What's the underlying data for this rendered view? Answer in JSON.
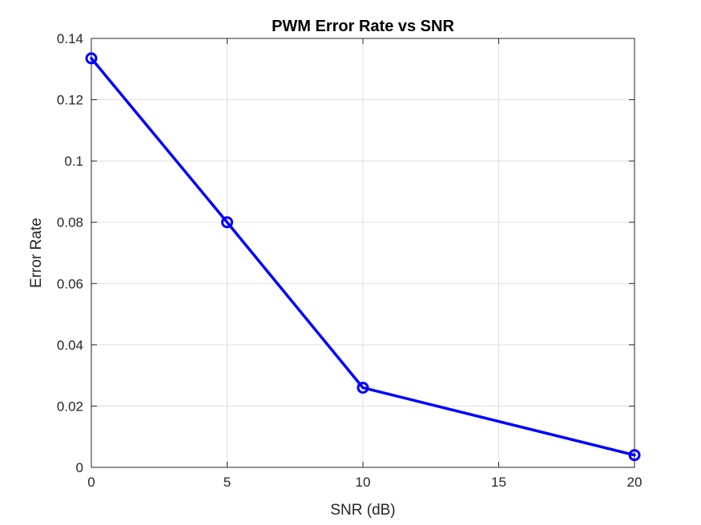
{
  "chart_data": {
    "type": "line",
    "title": "PWM Error Rate vs SNR",
    "xlabel": "SNR (dB)",
    "ylabel": "Error Rate",
    "xlim": [
      0,
      20
    ],
    "ylim": [
      0,
      0.14
    ],
    "xticks": [
      0,
      5,
      10,
      15,
      20
    ],
    "xtick_labels": [
      "0",
      "5",
      "10",
      "15",
      "20"
    ],
    "yticks": [
      0,
      0.02,
      0.04,
      0.06,
      0.08,
      0.1,
      0.12,
      0.14
    ],
    "ytick_labels": [
      "0",
      "0.02",
      "0.04",
      "0.06",
      "0.08",
      "0.1",
      "0.12",
      "0.14"
    ],
    "grid": true,
    "series": [
      {
        "x": [
          0,
          5,
          10,
          20
        ],
        "y": [
          0.1335,
          0.08,
          0.026,
          0.004
        ],
        "color": "#0000ff",
        "marker": "circle"
      }
    ]
  }
}
